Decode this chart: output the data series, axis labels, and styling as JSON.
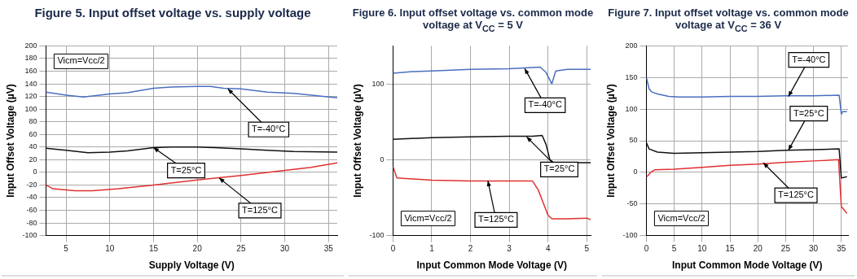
{
  "chart_data": [
    {
      "type": "line",
      "title": "Figure 5. Input offset voltage vs. supply voltage",
      "xlabel": "Supply Voltage (V)",
      "ylabel": "Input Offset Voltage (µV)",
      "xlim": [
        2.7,
        36
      ],
      "xticks": [
        5,
        10,
        15,
        20,
        25,
        30,
        35
      ],
      "ylim": [
        -100,
        200
      ],
      "yticks": [
        -100,
        -80,
        -60,
        -40,
        -20,
        0,
        20,
        40,
        60,
        80,
        100,
        120,
        140,
        160,
        180,
        200
      ],
      "grid": true,
      "legend": false,
      "marker": "none",
      "line_style": "solid",
      "series": [
        {
          "color": "#4a6fc0",
          "x": [
            2.7,
            5,
            7,
            10,
            12,
            15,
            17,
            20,
            21.5,
            23,
            25,
            28,
            31,
            36
          ],
          "values": [
            127,
            122,
            119,
            124,
            126,
            133,
            135,
            136,
            136,
            133,
            132,
            127,
            125,
            118
          ]
        },
        {
          "color": "#111111",
          "x": [
            2.7,
            5,
            7.5,
            10,
            12,
            15,
            17,
            20,
            22,
            25,
            28,
            31,
            36
          ],
          "values": [
            38,
            35,
            31,
            32,
            34,
            39,
            40,
            40,
            39,
            37,
            35,
            33,
            32
          ]
        },
        {
          "color": "#e03030",
          "x": [
            2.7,
            3.5,
            6,
            8,
            11,
            15,
            20,
            25,
            30,
            33,
            36
          ],
          "values": [
            -20,
            -26,
            -29,
            -29,
            -26,
            -20,
            -12,
            -5,
            3,
            8,
            15
          ]
        }
      ],
      "annotations": [
        "Vicm=Vcc/2",
        {
          "text": "T=-40°C",
          "x": 23.5,
          "y": 132
        },
        {
          "text": "T=25°C",
          "x": 15,
          "y": 39
        },
        {
          "text": "T=125°C",
          "x": 22.5,
          "y": -9
        }
      ]
    },
    {
      "type": "line",
      "title": "Figure 6. Input offset voltage vs. common mode voltage at V$_{CC}$ = 5 V",
      "xlabel": "Input Common Mode Voltage (V)",
      "ylabel": "Input Offset Voltage (µV)",
      "xlim": [
        0,
        5.1
      ],
      "xticks": [
        0,
        1,
        2,
        3,
        4,
        5
      ],
      "ylim": [
        -100,
        150
      ],
      "yticks": [
        -100,
        0,
        100
      ],
      "grid": true,
      "legend": false,
      "marker": "none",
      "line_style": "solid",
      "series": [
        {
          "color": "#4a6fc0",
          "x": [
            0,
            0.5,
            1,
            2,
            3,
            3.8,
            3.95,
            4.1,
            4.2,
            4.5,
            5.1
          ],
          "values": [
            114,
            116,
            117,
            119,
            120,
            122,
            115,
            100,
            117,
            119,
            119
          ]
        },
        {
          "color": "#111111",
          "x": [
            0,
            1,
            2,
            3,
            3.6,
            3.85,
            3.95,
            4.05,
            4.15,
            4.5,
            5.1
          ],
          "values": [
            27,
            29,
            30,
            31,
            31,
            32,
            20,
            0,
            -4,
            -4,
            -4
          ]
        },
        {
          "color": "#e03030",
          "x": [
            0,
            0.1,
            1,
            2,
            3,
            3.6,
            3.75,
            3.9,
            4.0,
            4.1,
            4.5,
            5.0,
            5.1
          ],
          "values": [
            -9,
            -24,
            -27,
            -28,
            -28,
            -28,
            -40,
            -60,
            -73,
            -78,
            -78,
            -77,
            -79
          ]
        }
      ],
      "annotations": [
        "Vicm=Vcc/2",
        {
          "text": "T=-40°C",
          "x": 3.4,
          "y": 120
        },
        {
          "text": "T=25°C",
          "x": 3.45,
          "y": 30
        },
        {
          "text": "T=125°C",
          "x": 2.45,
          "y": -28
        }
      ]
    },
    {
      "type": "line",
      "title": "Figure 7. Input offset voltage vs. common mode voltage at V$_{CC}$ = 36 V",
      "xlabel": "Input Common Mode Voltage (V)",
      "ylabel": "Input Offset Voltage (µV)",
      "xlim": [
        0,
        36.2
      ],
      "xticks": [
        0,
        5,
        10,
        15,
        20,
        25,
        30,
        35
      ],
      "ylim": [
        -100,
        200
      ],
      "yticks": [
        -100,
        -50,
        0,
        50,
        100,
        150,
        200
      ],
      "grid": true,
      "legend": false,
      "marker": "none",
      "line_style": "solid",
      "series": [
        {
          "color": "#4a6fc0",
          "x": [
            0,
            0.5,
            1,
            2,
            4,
            6,
            10,
            15,
            20,
            25,
            30,
            34.6,
            35,
            35.2,
            36
          ],
          "values": [
            150,
            132,
            127,
            124,
            120,
            119,
            119,
            120,
            120,
            121,
            121,
            122,
            92,
            96,
            96
          ]
        },
        {
          "color": "#111111",
          "x": [
            0,
            0.5,
            2,
            5,
            10,
            15,
            20,
            25,
            30,
            34.6,
            35,
            36
          ],
          "values": [
            47,
            37,
            32,
            30,
            31,
            32,
            33,
            35,
            36,
            37,
            -9,
            -7
          ]
        },
        {
          "color": "#e03030",
          "x": [
            0,
            0.3,
            0.8,
            1.5,
            5,
            10,
            15,
            20,
            25,
            30,
            34.5,
            35,
            35.3,
            36
          ],
          "values": [
            -7,
            -5,
            0,
            4,
            5,
            8,
            11,
            13,
            16,
            18,
            20,
            -55,
            -57,
            -65
          ]
        }
      ],
      "annotations": [
        "Vicm=Vcc/2",
        {
          "text": "T=-40°C",
          "x": 25.5,
          "y": 120
        },
        {
          "text": "T=25°C",
          "x": 25.5,
          "y": 35
        },
        {
          "text": "T=125°C",
          "x": 21,
          "y": 15
        }
      ]
    }
  ]
}
